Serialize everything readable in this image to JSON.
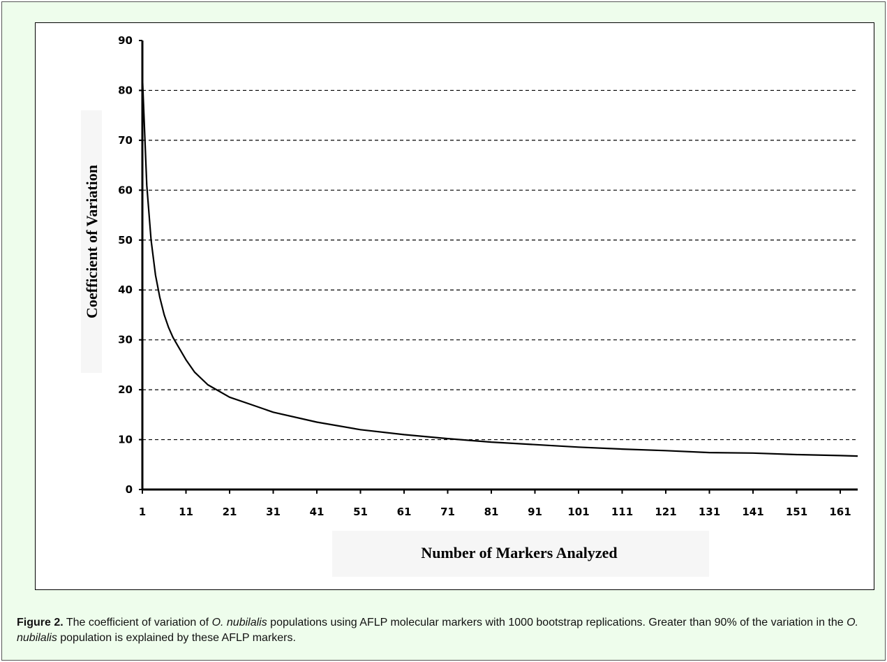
{
  "caption": {
    "label": "Figure 2.",
    "part1": " The coefficient of variation of ",
    "species1": "O. nubilalis",
    "part2": " populations using AFLP molecular markers with 1000 bootstrap replications. Greater than 90% of the variation in the ",
    "species2": "O. nubilalis",
    "part3": " population is explained by these AFLP markers."
  },
  "colors": {
    "background": "#eefdec",
    "line": "#000000",
    "grid": "#000000"
  },
  "chart_data": {
    "type": "line",
    "title": "",
    "xlabel": "Number of Markers Analyzed",
    "ylabel": "Coefficient of Variation",
    "xlim": [
      1,
      165
    ],
    "ylim": [
      0,
      90
    ],
    "x_ticks": [
      1,
      11,
      21,
      31,
      41,
      51,
      61,
      71,
      81,
      91,
      101,
      111,
      121,
      131,
      141,
      151,
      161
    ],
    "y_ticks": [
      0,
      10,
      20,
      30,
      40,
      50,
      60,
      70,
      80,
      90
    ],
    "grid": "horizontal dashed",
    "series": [
      {
        "x": [
          1,
          2,
          3,
          4,
          5,
          6,
          7,
          8,
          9,
          11,
          13,
          16,
          21,
          26,
          31,
          41,
          51,
          61,
          71,
          81,
          91,
          101,
          111,
          121,
          131,
          141,
          151,
          161,
          165
        ],
        "values": [
          83,
          61,
          50,
          43,
          38.5,
          35,
          32.5,
          30.5,
          29,
          26,
          23.5,
          21,
          18.5,
          17,
          15.5,
          13.5,
          12,
          11,
          10.2,
          9.5,
          9,
          8.5,
          8.1,
          7.8,
          7.4,
          7.3,
          7,
          6.8,
          6.7
        ]
      }
    ]
  }
}
